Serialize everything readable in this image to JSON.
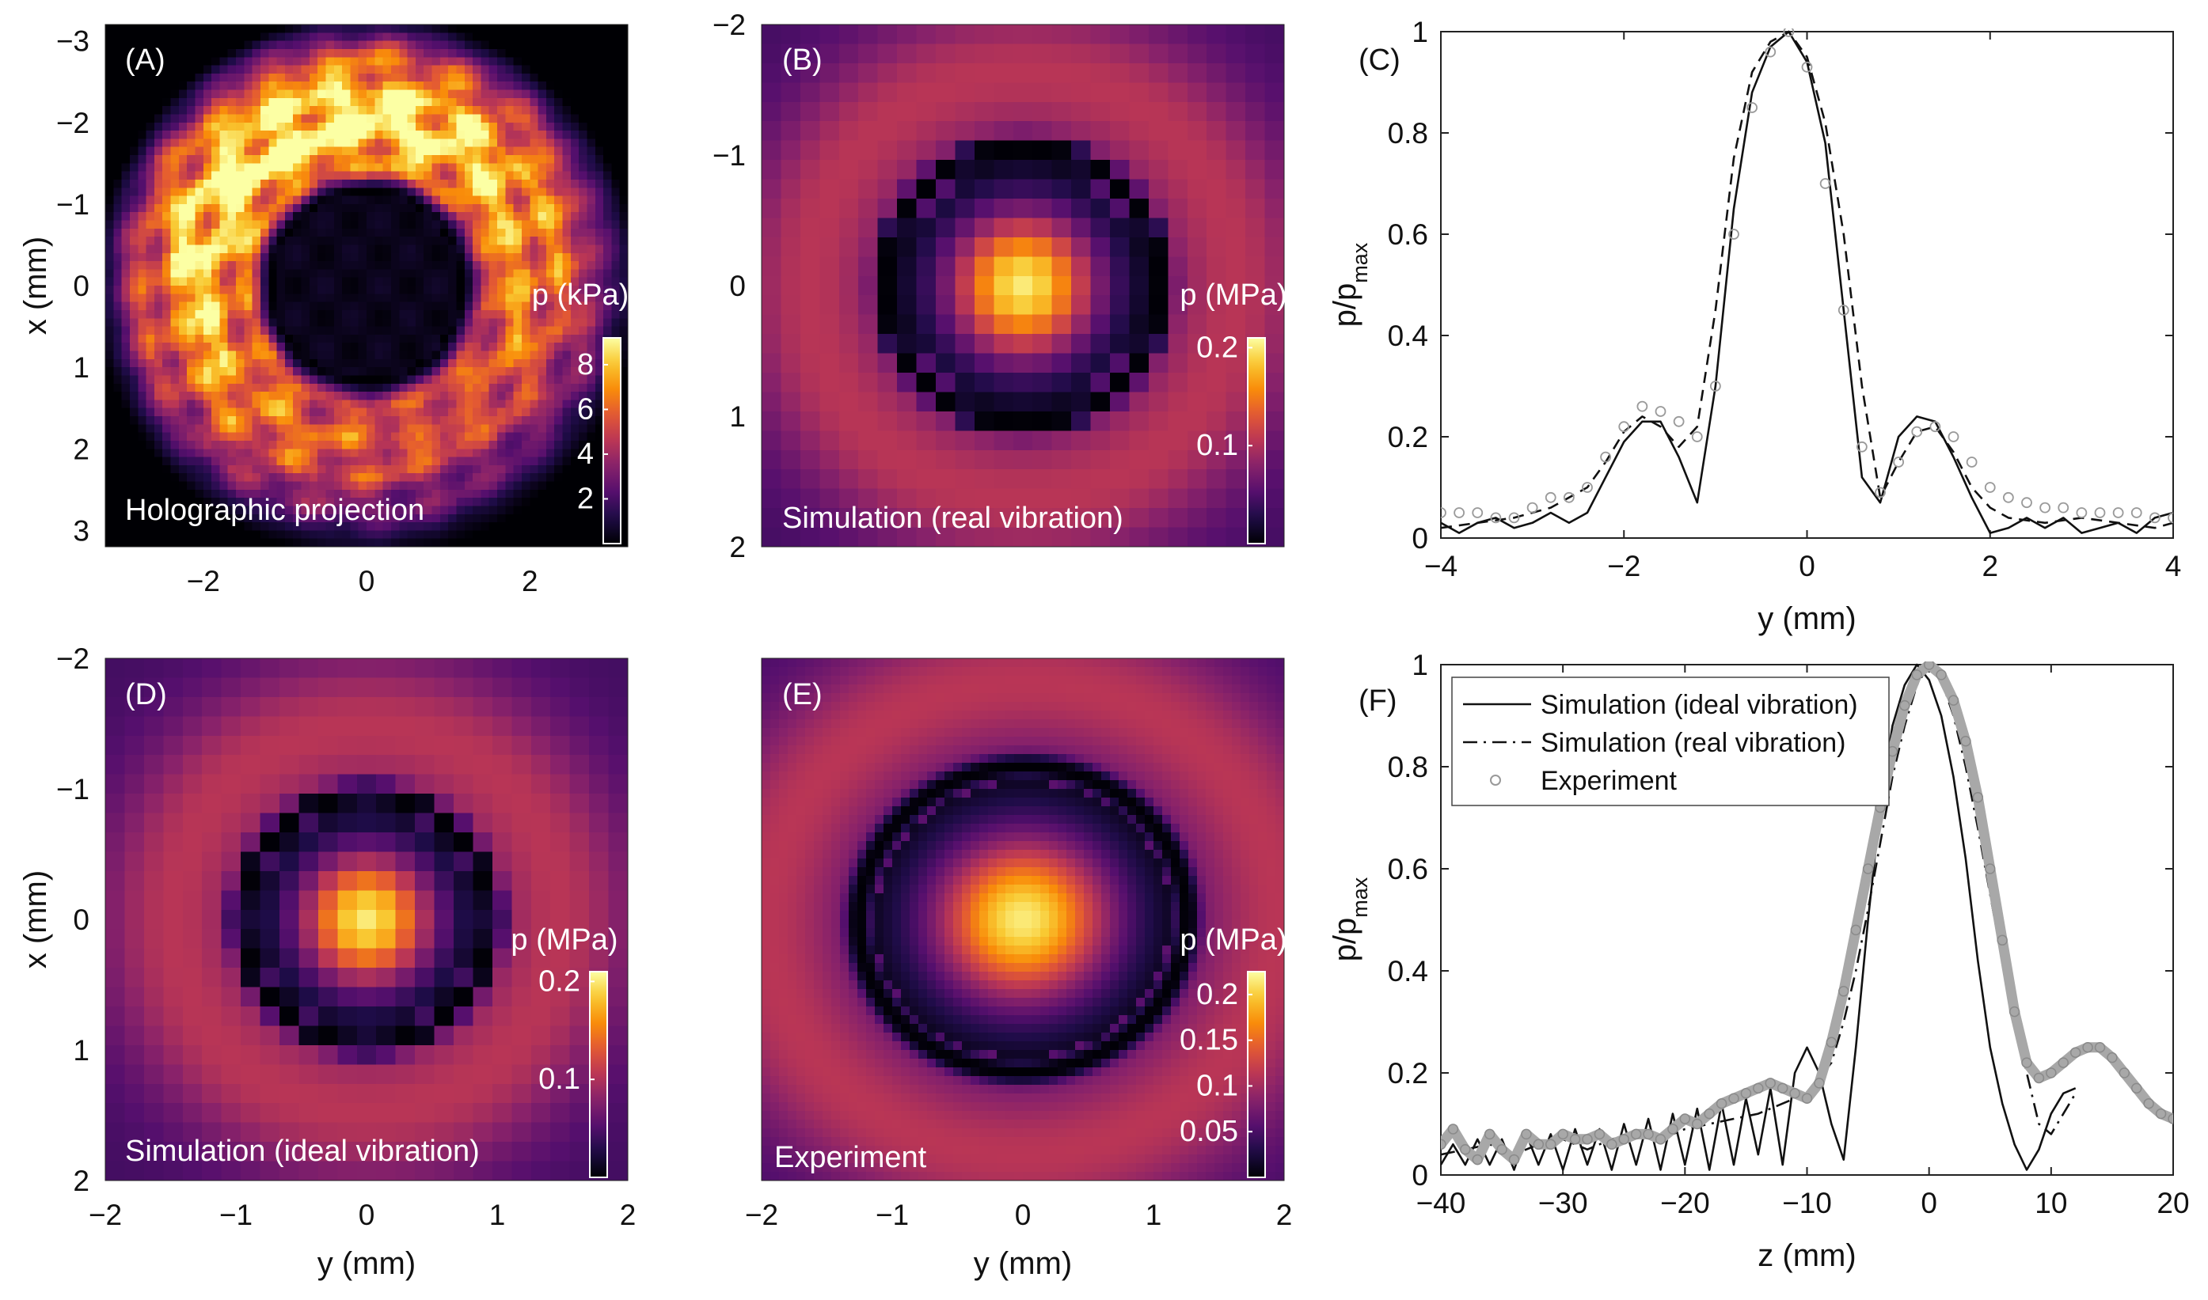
{
  "chart_data": [
    {
      "id": "A",
      "type": "heatmap",
      "panel_label": "(A)",
      "annotation": "Holographic projection",
      "xlabel": "",
      "ylabel": "x (mm)",
      "x_ticks": [
        "−2",
        "0",
        "2"
      ],
      "y_ticks": [
        "−3",
        "−2",
        "−1",
        "0",
        "1",
        "2",
        "3"
      ],
      "xlim": [
        -3.2,
        3.2
      ],
      "ylim": [
        -3.2,
        3.2
      ],
      "colorbar": {
        "label": "p (kPa)",
        "ticks": [
          "2",
          "4",
          "6",
          "8"
        ],
        "tick_values": [
          2,
          4,
          6,
          8
        ],
        "range": [
          0,
          9.2
        ]
      },
      "field": {
        "pattern": "ring",
        "dark_core_radius_mm": 1.15,
        "ring_peak_mm": 2.0,
        "peak": 8.6,
        "irregular": true
      }
    },
    {
      "id": "B",
      "type": "heatmap",
      "panel_label": "(B)",
      "annotation": "Simulation (real vibration)",
      "xlabel": "",
      "ylabel": "",
      "x_ticks": [],
      "y_ticks": [
        "−2",
        "−1",
        "0",
        "1",
        "2"
      ],
      "xlim": [
        -2,
        2
      ],
      "ylim": [
        -2,
        2
      ],
      "colorbar": {
        "label": "p (MPa)",
        "ticks": [
          "0.1",
          "0.2"
        ],
        "tick_values": [
          0.1,
          0.2
        ],
        "range": [
          0,
          0.21
        ]
      },
      "field": {
        "pattern": "focus",
        "first_null_mm": 1.05,
        "peak": 0.2,
        "pixelated": true,
        "grid": 27
      }
    },
    {
      "id": "D",
      "type": "heatmap",
      "panel_label": "(D)",
      "annotation": "Simulation (ideal vibration)",
      "xlabel": "y (mm)",
      "ylabel": "x (mm)",
      "x_ticks": [
        "−2",
        "−1",
        "0",
        "1",
        "2"
      ],
      "y_ticks": [
        "−2",
        "−1",
        "0",
        "1",
        "2"
      ],
      "xlim": [
        -2,
        2
      ],
      "ylim": [
        -2,
        2
      ],
      "colorbar": {
        "label": "p (MPa)",
        "ticks": [
          "0.1",
          "0.2"
        ],
        "tick_values": [
          0.1,
          0.2
        ],
        "range": [
          0,
          0.21
        ]
      },
      "field": {
        "pattern": "focus",
        "first_null_mm": 0.95,
        "peak": 0.2,
        "pixelated": true,
        "grid": 27
      }
    },
    {
      "id": "E",
      "type": "heatmap",
      "panel_label": "(E)",
      "annotation": "Experiment",
      "xlabel": "y (mm)",
      "ylabel": "",
      "x_ticks": [
        "−2",
        "−1",
        "0",
        "1",
        "2"
      ],
      "y_ticks": [],
      "xlim": [
        -2,
        2
      ],
      "ylim": [
        -2,
        2
      ],
      "colorbar": {
        "label": "p (MPa)",
        "ticks": [
          "0.05",
          "0.1",
          "0.15",
          "0.2"
        ],
        "tick_values": [
          0.05,
          0.1,
          0.15,
          0.2
        ],
        "range": [
          0,
          0.225
        ]
      },
      "field": {
        "pattern": "focus",
        "first_null_mm": 1.2,
        "peak": 0.215,
        "pixelated": false,
        "tilted": true
      }
    },
    {
      "id": "C",
      "type": "line",
      "panel_label": "(C)",
      "xlabel": "y (mm)",
      "ylabel": "p/p",
      "ylabel_sub": "max",
      "xlim": [
        -4,
        4
      ],
      "ylim": [
        0,
        1
      ],
      "x_ticks": [
        "−4",
        "−2",
        "0",
        "2",
        "4"
      ],
      "y_ticks": [
        "0",
        "0.2",
        "0.4",
        "0.6",
        "0.8",
        "1"
      ],
      "series": [
        {
          "name": "Simulation (ideal vibration)",
          "style": "solid",
          "x": [
            -4,
            -3.8,
            -3.6,
            -3.4,
            -3.2,
            -3.0,
            -2.8,
            -2.6,
            -2.4,
            -2.2,
            -2.0,
            -1.8,
            -1.6,
            -1.4,
            -1.2,
            -1.0,
            -0.8,
            -0.6,
            -0.4,
            -0.2,
            0.0,
            0.2,
            0.4,
            0.6,
            0.8,
            1.0,
            1.2,
            1.4,
            1.6,
            1.8,
            2.0,
            2.2,
            2.4,
            2.6,
            2.8,
            3.0,
            3.2,
            3.4,
            3.6,
            3.8,
            4.0
          ],
          "y": [
            0.03,
            0.01,
            0.03,
            0.04,
            0.02,
            0.03,
            0.05,
            0.03,
            0.05,
            0.12,
            0.19,
            0.23,
            0.23,
            0.16,
            0.07,
            0.3,
            0.65,
            0.88,
            0.97,
            1.0,
            0.94,
            0.78,
            0.45,
            0.12,
            0.07,
            0.2,
            0.24,
            0.23,
            0.16,
            0.08,
            0.01,
            0.02,
            0.04,
            0.02,
            0.04,
            0.01,
            0.02,
            0.03,
            0.01,
            0.04,
            0.05
          ]
        },
        {
          "name": "Simulation (real vibration)",
          "style": "dashed",
          "x": [
            -4,
            -3.6,
            -3.2,
            -2.8,
            -2.4,
            -2.2,
            -2.0,
            -1.8,
            -1.6,
            -1.4,
            -1.2,
            -1.0,
            -0.8,
            -0.6,
            -0.4,
            -0.2,
            0.0,
            0.2,
            0.4,
            0.6,
            0.8,
            1.0,
            1.2,
            1.4,
            1.6,
            1.8,
            2.0,
            2.2,
            2.6,
            3.0,
            3.4,
            3.8,
            4.0
          ],
          "y": [
            0.02,
            0.03,
            0.04,
            0.06,
            0.1,
            0.15,
            0.21,
            0.24,
            0.22,
            0.18,
            0.22,
            0.45,
            0.75,
            0.92,
            0.98,
            1.0,
            0.95,
            0.82,
            0.6,
            0.3,
            0.08,
            0.15,
            0.21,
            0.22,
            0.17,
            0.1,
            0.06,
            0.04,
            0.03,
            0.04,
            0.03,
            0.02,
            0.03
          ]
        },
        {
          "name": "Experiment",
          "style": "markers",
          "x": [
            -4.0,
            -3.8,
            -3.6,
            -3.4,
            -3.2,
            -3.0,
            -2.8,
            -2.6,
            -2.4,
            -2.2,
            -2.0,
            -1.8,
            -1.6,
            -1.4,
            -1.2,
            -1.0,
            -0.8,
            -0.6,
            -0.4,
            -0.2,
            0.0,
            0.2,
            0.4,
            0.6,
            0.8,
            1.0,
            1.2,
            1.4,
            1.6,
            1.8,
            2.0,
            2.2,
            2.4,
            2.6,
            2.8,
            3.0,
            3.2,
            3.4,
            3.6,
            3.8,
            4.0
          ],
          "y": [
            0.05,
            0.05,
            0.05,
            0.04,
            0.04,
            0.06,
            0.08,
            0.08,
            0.1,
            0.16,
            0.22,
            0.26,
            0.25,
            0.23,
            0.2,
            0.3,
            0.6,
            0.85,
            0.96,
            1.0,
            0.93,
            0.7,
            0.45,
            0.18,
            0.09,
            0.15,
            0.21,
            0.22,
            0.2,
            0.15,
            0.1,
            0.08,
            0.07,
            0.06,
            0.06,
            0.05,
            0.05,
            0.05,
            0.05,
            0.04,
            0.04
          ]
        }
      ]
    },
    {
      "id": "F",
      "type": "line",
      "panel_label": "(F)",
      "xlabel": "z (mm)",
      "ylabel": "p/p",
      "ylabel_sub": "max",
      "xlim": [
        -40,
        20
      ],
      "ylim": [
        0,
        1
      ],
      "x_ticks": [
        "−40",
        "−30",
        "−20",
        "−10",
        "0",
        "10",
        "20"
      ],
      "y_ticks": [
        "0",
        "0.2",
        "0.4",
        "0.6",
        "0.8",
        "1"
      ],
      "legend": {
        "placement": "top-left"
      },
      "series": [
        {
          "name": "Simulation (ideal vibration)",
          "style": "solid",
          "x": [
            -40,
            -39,
            -38,
            -37,
            -36,
            -35,
            -34,
            -33,
            -32,
            -31,
            -30,
            -29,
            -28,
            -27,
            -26,
            -25,
            -24,
            -23,
            -22,
            -21,
            -20,
            -19,
            -18,
            -17,
            -16,
            -15,
            -14,
            -13,
            -12,
            -11,
            -10,
            -9,
            -8,
            -7,
            -6,
            -5,
            -4,
            -3,
            -2,
            -1,
            0,
            1,
            2,
            3,
            4,
            5,
            6,
            7,
            8,
            9,
            10,
            11,
            12
          ],
          "y": [
            0.02,
            0.06,
            0.02,
            0.07,
            0.02,
            0.07,
            0.01,
            0.08,
            0.02,
            0.08,
            0.01,
            0.09,
            0.02,
            0.09,
            0.01,
            0.1,
            0.02,
            0.11,
            0.01,
            0.12,
            0.02,
            0.13,
            0.01,
            0.14,
            0.02,
            0.15,
            0.04,
            0.17,
            0.02,
            0.2,
            0.25,
            0.2,
            0.1,
            0.03,
            0.25,
            0.5,
            0.72,
            0.88,
            0.96,
            1.0,
            0.97,
            0.9,
            0.78,
            0.62,
            0.42,
            0.25,
            0.14,
            0.06,
            0.01,
            0.05,
            0.12,
            0.16,
            0.17
          ]
        },
        {
          "name": "Simulation (real vibration)",
          "style": "dashdot",
          "x": [
            -40,
            -38,
            -36,
            -34,
            -32,
            -30,
            -28,
            -26,
            -24,
            -22,
            -20,
            -18,
            -16,
            -14,
            -12,
            -10,
            -8,
            -7,
            -6,
            -5,
            -4,
            -3,
            -2,
            -1,
            0,
            1,
            2,
            3,
            4,
            5,
            6,
            7,
            8,
            9,
            10,
            11,
            12
          ],
          "y": [
            0.04,
            0.05,
            0.06,
            0.04,
            0.06,
            0.07,
            0.05,
            0.07,
            0.08,
            0.07,
            0.09,
            0.1,
            0.11,
            0.12,
            0.14,
            0.16,
            0.22,
            0.3,
            0.4,
            0.52,
            0.65,
            0.78,
            0.88,
            0.96,
            1.0,
            0.97,
            0.9,
            0.8,
            0.68,
            0.55,
            0.42,
            0.3,
            0.2,
            0.1,
            0.08,
            0.12,
            0.16
          ]
        },
        {
          "name": "Experiment",
          "style": "markers",
          "x": [
            -40,
            -39,
            -38,
            -37,
            -36,
            -35,
            -34,
            -33,
            -32,
            -31,
            -30,
            -29,
            -28,
            -27,
            -26,
            -25,
            -24,
            -23,
            -22,
            -21,
            -20,
            -19,
            -18,
            -17,
            -16,
            -15,
            -14,
            -13,
            -12,
            -11,
            -10,
            -9,
            -8,
            -7,
            -6,
            -5,
            -4,
            -3,
            -2,
            -1,
            0,
            1,
            2,
            3,
            4,
            5,
            6,
            7,
            8,
            9,
            10,
            11,
            12,
            13,
            14,
            15,
            16,
            17,
            18,
            19,
            20
          ],
          "y": [
            0.06,
            0.09,
            0.05,
            0.03,
            0.08,
            0.05,
            0.03,
            0.08,
            0.06,
            0.06,
            0.08,
            0.07,
            0.07,
            0.08,
            0.06,
            0.07,
            0.08,
            0.08,
            0.07,
            0.09,
            0.11,
            0.1,
            0.12,
            0.14,
            0.15,
            0.16,
            0.17,
            0.18,
            0.17,
            0.16,
            0.15,
            0.18,
            0.26,
            0.36,
            0.48,
            0.6,
            0.72,
            0.83,
            0.92,
            0.98,
            1.0,
            0.98,
            0.93,
            0.85,
            0.74,
            0.6,
            0.46,
            0.32,
            0.22,
            0.19,
            0.2,
            0.22,
            0.24,
            0.25,
            0.25,
            0.23,
            0.2,
            0.17,
            0.14,
            0.12,
            0.11
          ]
        }
      ]
    }
  ]
}
